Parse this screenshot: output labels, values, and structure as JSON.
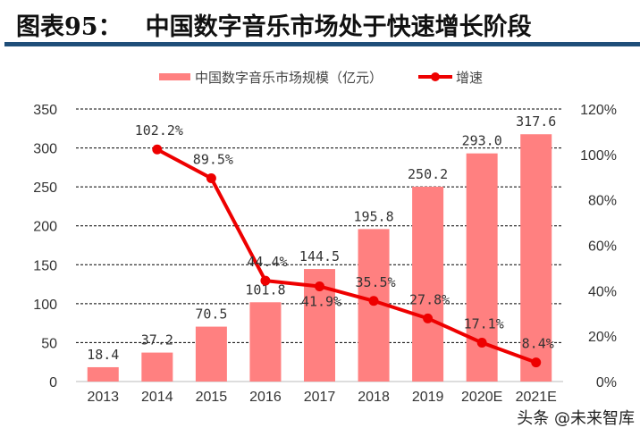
{
  "header": {
    "figure_label": "图表95：",
    "title": "中国数字音乐市场处于快速增长阶段"
  },
  "watermark": "头条 @未来智库",
  "chart_data": {
    "type": "bar+line",
    "categories": [
      "2013",
      "2014",
      "2015",
      "2016",
      "2017",
      "2018",
      "2019",
      "2020E",
      "2021E"
    ],
    "series": [
      {
        "name": "中国数字音乐市场规模（亿元）",
        "type": "bar",
        "axis": "left",
        "color": "#ff8080",
        "values": [
          18.4,
          37.2,
          70.5,
          101.8,
          144.5,
          195.8,
          250.2,
          293.0,
          317.6
        ],
        "labels": [
          "18.4",
          "37.2",
          "70.5",
          "101.8",
          "144.5",
          "195.8",
          "250.2",
          "293.0",
          "317.6"
        ]
      },
      {
        "name": "增速",
        "type": "line",
        "axis": "right",
        "color": "#ee0000",
        "values": [
          null,
          102.2,
          89.5,
          44.4,
          41.9,
          35.5,
          27.8,
          17.1,
          8.4
        ],
        "labels": [
          "",
          "102.2%",
          "89.5%",
          "44.4%",
          "41.9%",
          "35.5%",
          "27.8%",
          "17.1%",
          "8.4%"
        ]
      }
    ],
    "ylim": [
      0,
      350
    ],
    "yticks": [
      "0",
      "50",
      "100",
      "150",
      "200",
      "250",
      "300",
      "350"
    ],
    "y2lim": [
      0,
      120
    ],
    "y2ticks": [
      "0%",
      "20%",
      "40%",
      "60%",
      "80%",
      "100%",
      "120%"
    ],
    "grid": true,
    "legend": "top"
  }
}
